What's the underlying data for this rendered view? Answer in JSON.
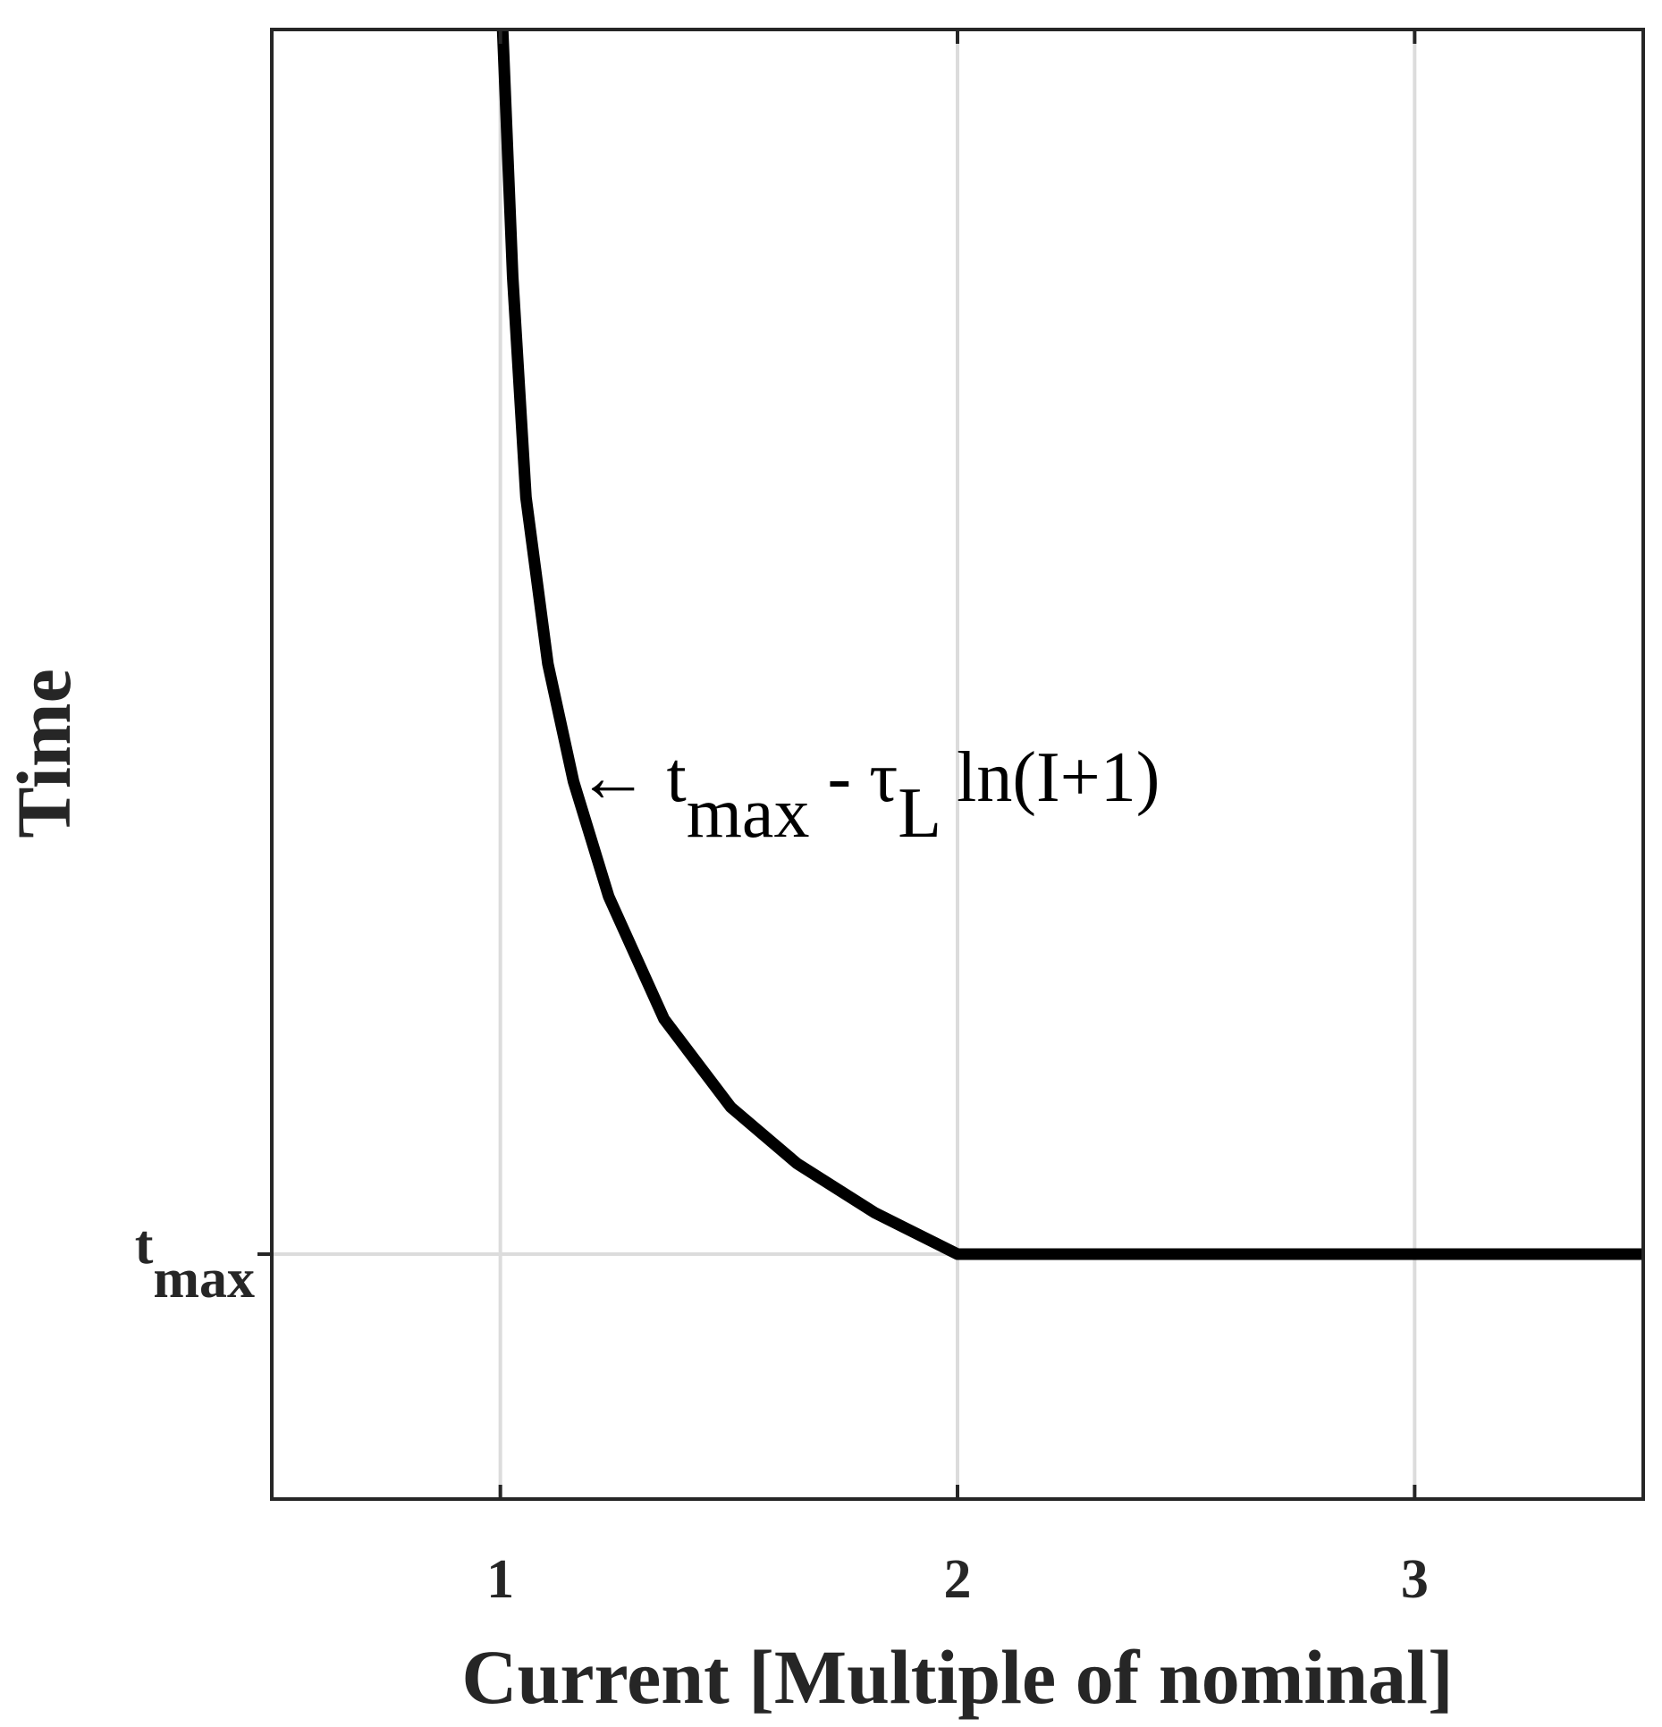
{
  "chart_data": {
    "type": "line",
    "xlabel": "Current [Multiple of nominal]",
    "ylabel": "Time",
    "x": [
      1.005,
      1.027,
      1.056,
      1.104,
      1.16,
      1.237,
      1.358,
      1.504,
      1.649,
      1.818,
      2.0,
      3.5
    ],
    "series": [
      {
        "color": "#000000",
        "values": [
          6,
          4.99,
          4.09,
          3.41,
          2.93,
          2.46,
          1.96,
          1.6,
          1.37,
          1.17,
          1.0,
          1.0
        ]
      }
    ],
    "xlim": [
      0.5,
      3.5
    ],
    "xticks": [
      1,
      2,
      3
    ],
    "ylim": [
      0,
      6
    ],
    "yticks": [
      {
        "value": 1,
        "label": [
          "t",
          "max"
        ]
      }
    ],
    "grid": true,
    "annotation": [
      "← t",
      "max",
      " - τ",
      "L",
      " ln(I+1)"
    ]
  }
}
